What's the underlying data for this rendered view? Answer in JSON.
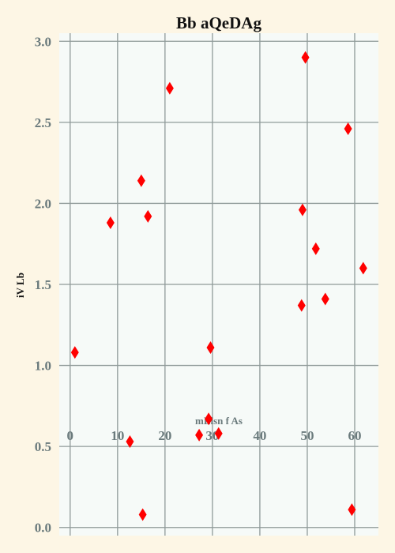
{
  "chart_data": {
    "type": "scatter",
    "title": "Bb aQeDAg",
    "xlabel": "mLlsn f As",
    "ylabel": "iV Lb",
    "xlim": [
      -2.3,
      65
    ],
    "ylim": [
      -0.05,
      3.05
    ],
    "x_ticks": [
      "0",
      "10",
      "20",
      "30",
      "40",
      "50",
      "60"
    ],
    "y_ticks": [
      "0.0",
      "0.5",
      "1.0",
      "1.5",
      "2.0",
      "2.5",
      "3.0"
    ],
    "grid": true,
    "marker": "diamond",
    "colors": {
      "background": "#fdf6e5",
      "plot_bg": "#f6faf8",
      "grid": "#8f9a99",
      "tick_text": "#6a7a7c",
      "marker": "#ff0000"
    },
    "points": [
      {
        "x": 1.0,
        "y": 1.08
      },
      {
        "x": 8.5,
        "y": 1.88
      },
      {
        "x": 12.6,
        "y": 0.53
      },
      {
        "x": 15.0,
        "y": 2.14
      },
      {
        "x": 15.3,
        "y": 0.08
      },
      {
        "x": 16.4,
        "y": 1.92
      },
      {
        "x": 21.0,
        "y": 2.71
      },
      {
        "x": 27.2,
        "y": 0.57
      },
      {
        "x": 29.2,
        "y": 0.67
      },
      {
        "x": 29.6,
        "y": 1.11
      },
      {
        "x": 31.3,
        "y": 0.58
      },
      {
        "x": 48.8,
        "y": 1.37
      },
      {
        "x": 49.0,
        "y": 1.96
      },
      {
        "x": 49.6,
        "y": 2.9
      },
      {
        "x": 51.8,
        "y": 1.72
      },
      {
        "x": 53.8,
        "y": 1.41
      },
      {
        "x": 58.6,
        "y": 2.46
      },
      {
        "x": 59.4,
        "y": 0.11
      },
      {
        "x": 61.8,
        "y": 1.6
      }
    ]
  }
}
